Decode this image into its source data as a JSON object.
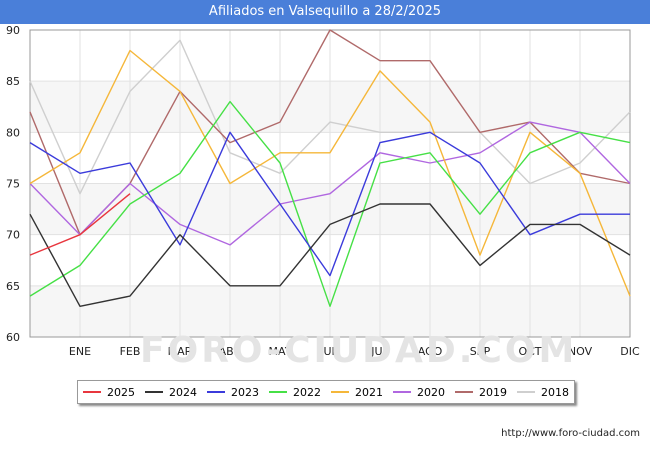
{
  "title": "Afiliados en Valsequillo a 28/2/2025",
  "source": "http://www.foro-ciudad.com",
  "watermark": "FORO-CIUDAD.COM",
  "chart_data": {
    "type": "line",
    "title": "Afiliados en Valsequillo a 28/2/2025",
    "categories": [
      "",
      "ENE",
      "FEB",
      "MAR",
      "ABR",
      "MAY",
      "JUN",
      "JUL",
      "AGO",
      "SEP",
      "OCT",
      "NOV",
      "DIC"
    ],
    "ylim": [
      60,
      90
    ],
    "yticks": [
      60,
      65,
      70,
      75,
      80,
      85,
      90
    ],
    "grid": true,
    "legend_position": "bottom",
    "series": [
      {
        "name": "2025",
        "color": "#e8363e",
        "values": [
          68,
          70,
          74,
          null,
          null,
          null,
          null,
          null,
          null,
          null,
          null,
          null,
          null
        ]
      },
      {
        "name": "2024",
        "color": "#333333",
        "values": [
          72,
          63,
          64,
          70,
          65,
          65,
          71,
          73,
          73,
          67,
          71,
          71,
          68
        ]
      },
      {
        "name": "2023",
        "color": "#3b3bdb",
        "values": [
          79,
          76,
          77,
          69,
          80,
          73,
          66,
          79,
          80,
          77,
          70,
          72,
          72
        ]
      },
      {
        "name": "2022",
        "color": "#46e046",
        "values": [
          64,
          67,
          73,
          76,
          83,
          77,
          63,
          77,
          78,
          72,
          78,
          80,
          79
        ]
      },
      {
        "name": "2021",
        "color": "#f5b73a",
        "values": [
          75,
          78,
          88,
          84,
          75,
          78,
          78,
          86,
          81,
          68,
          80,
          76,
          64
        ]
      },
      {
        "name": "2020",
        "color": "#b067e0",
        "values": [
          75,
          70,
          75,
          71,
          69,
          73,
          74,
          78,
          77,
          78,
          81,
          80,
          75
        ]
      },
      {
        "name": "2019",
        "color": "#b06a6a",
        "values": [
          82,
          70,
          75,
          84,
          79,
          81,
          90,
          87,
          87,
          80,
          81,
          76,
          75
        ]
      },
      {
        "name": "2018",
        "color": "#cfcfcf",
        "values": [
          85,
          74,
          84,
          89,
          78,
          76,
          81,
          80,
          80,
          80,
          75,
          77,
          82
        ]
      }
    ]
  }
}
